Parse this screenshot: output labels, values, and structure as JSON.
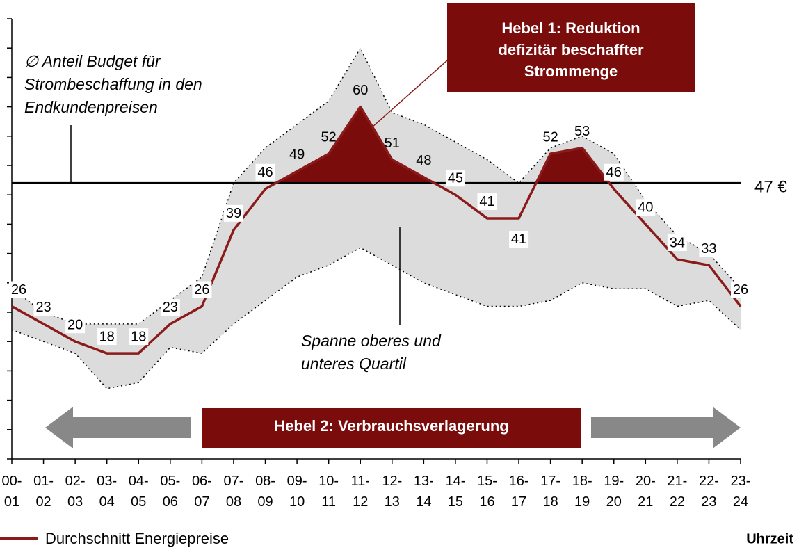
{
  "chart_data": {
    "type": "line",
    "categories": [
      "00-01",
      "01-02",
      "02-03",
      "03-04",
      "04-05",
      "05-06",
      "06-07",
      "07-08",
      "08-09",
      "09-10",
      "10-11",
      "11-12",
      "12-13",
      "13-14",
      "14-15",
      "15-16",
      "16-17",
      "17-18",
      "18-19",
      "19-20",
      "20-21",
      "21-22",
      "22-23",
      "23-24"
    ],
    "series": [
      {
        "name": "Durchschnitt Energiepreise",
        "color": "#8b1a1a",
        "values": [
          26,
          23,
          20,
          18,
          18,
          23,
          26,
          39,
          46,
          49,
          52,
          60,
          51,
          48,
          45,
          41,
          41,
          52,
          53,
          46,
          40,
          34,
          33,
          26
        ]
      }
    ],
    "band": {
      "name": "Spanne oberes und unteres Quartil",
      "color": "#dcdcdc",
      "upper": [
        29,
        25,
        23,
        23,
        23,
        27,
        31,
        47,
        53,
        57,
        61,
        70,
        59,
        57,
        54,
        51,
        47,
        53,
        55,
        52,
        44,
        38,
        35,
        29
      ],
      "lower": [
        22,
        20,
        18,
        12,
        13,
        19,
        18,
        23,
        27,
        31,
        33,
        36,
        33,
        30,
        28,
        26,
        26,
        27,
        30,
        29,
        29,
        26,
        27,
        22
      ]
    },
    "threshold": {
      "value": 47,
      "label": "47 €",
      "fill_color": "#7b0c0c"
    },
    "ylim": [
      0,
      75
    ],
    "yticks": [
      0,
      5,
      10,
      15,
      20,
      25,
      30,
      35,
      40,
      45,
      50,
      55,
      60,
      65,
      70,
      75
    ],
    "xlabel": "Uhrzeit",
    "annotations": {
      "budget": [
        "∅ Anteil Budget für",
        "Strombeschaffung in den",
        "Endkundenpreisen"
      ],
      "spanne": [
        "Spanne oberes und",
        "unteres Quartil"
      ],
      "hebel1": [
        "Hebel 1: Reduktion",
        "defizitär beschaffter",
        "Strommenge"
      ],
      "hebel2": "Hebel 2: Verbrauchsverlagerung"
    }
  }
}
